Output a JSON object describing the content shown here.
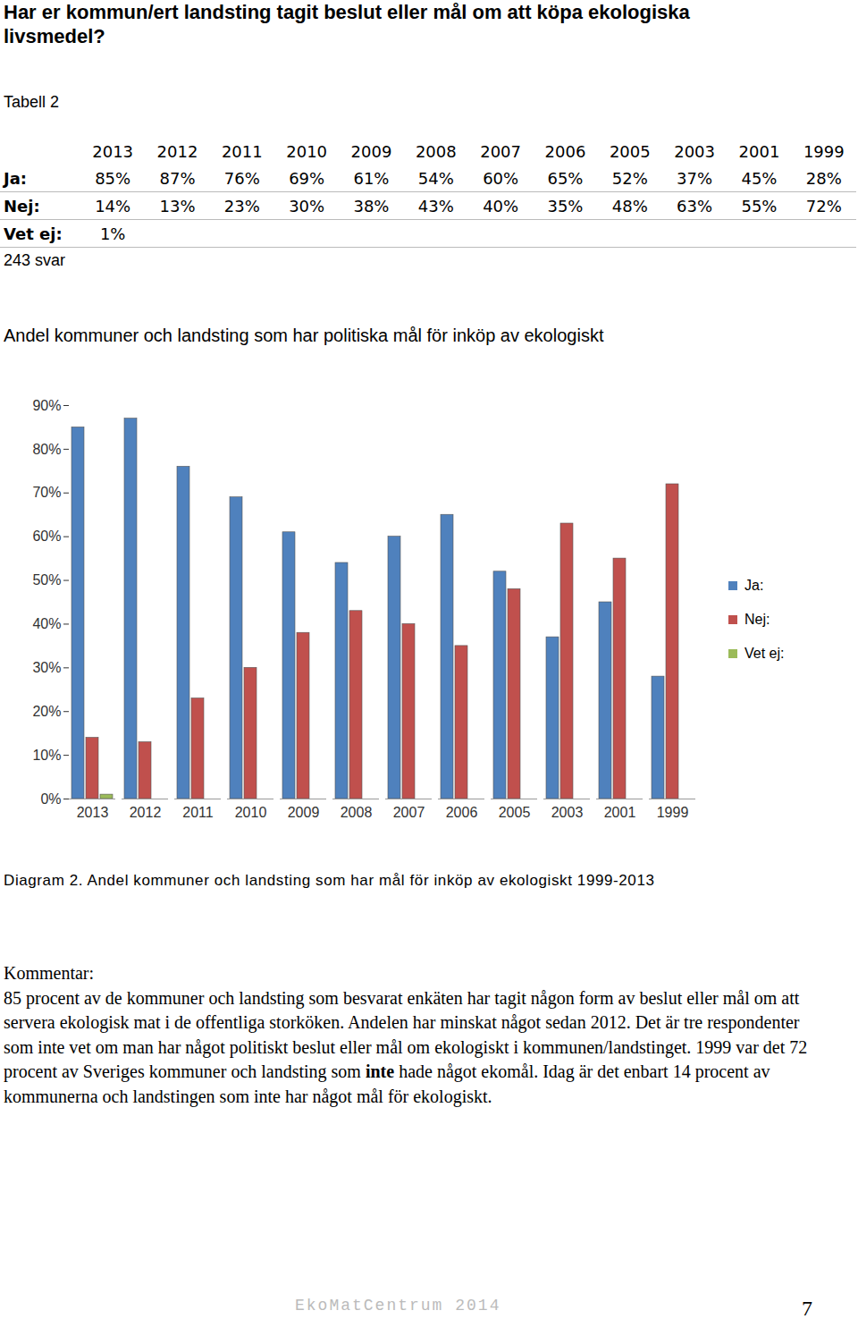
{
  "heading": "Har er kommun/ert landsting tagit beslut eller mål om att köpa ekologiska livsmedel?",
  "table": {
    "title": "Tabell 2",
    "columns": [
      "2013",
      "2012",
      "2011",
      "2010",
      "2009",
      "2008",
      "2007",
      "2006",
      "2005",
      "2003",
      "2001",
      "1999"
    ],
    "rows": [
      {
        "label": "Ja:",
        "cells": [
          "85%",
          "87%",
          "76%",
          "69%",
          "61%",
          "54%",
          "60%",
          "65%",
          "52%",
          "37%",
          "45%",
          "28%"
        ]
      },
      {
        "label": "Nej:",
        "cells": [
          "14%",
          "13%",
          "23%",
          "30%",
          "38%",
          "43%",
          "40%",
          "35%",
          "48%",
          "63%",
          "55%",
          "72%"
        ]
      },
      {
        "label": "Vet ej:",
        "cells": [
          "1%"
        ]
      }
    ],
    "note": "243 svar"
  },
  "chart_data": {
    "type": "bar",
    "title": "Andel kommuner och landsting som har politiska mål för inköp av ekologiskt",
    "categories": [
      "2013",
      "2012",
      "2011",
      "2010",
      "2009",
      "2008",
      "2007",
      "2006",
      "2005",
      "2003",
      "2001",
      "1999"
    ],
    "series": [
      {
        "name": "Ja:",
        "color": "#4f81bd",
        "values": [
          85,
          87,
          76,
          69,
          61,
          54,
          60,
          65,
          52,
          37,
          45,
          28
        ]
      },
      {
        "name": "Nej:",
        "color": "#c0504d",
        "values": [
          14,
          13,
          23,
          30,
          38,
          43,
          40,
          35,
          48,
          63,
          55,
          72
        ]
      },
      {
        "name": "Vet ej:",
        "color": "#9bbb59",
        "values": [
          1,
          null,
          null,
          null,
          null,
          null,
          null,
          null,
          null,
          null,
          null,
          null
        ]
      }
    ],
    "ylim": [
      0,
      90
    ],
    "yticks": [
      {
        "value": 0,
        "label": "0%"
      },
      {
        "value": 10,
        "label": "10%"
      },
      {
        "value": 20,
        "label": "20%"
      },
      {
        "value": 30,
        "label": "30%"
      },
      {
        "value": 40,
        "label": "40%"
      },
      {
        "value": 50,
        "label": "50%"
      },
      {
        "value": 60,
        "label": "60%"
      },
      {
        "value": 70,
        "label": "70%"
      },
      {
        "value": 80,
        "label": "80%"
      },
      {
        "value": 90,
        "label": "90%"
      }
    ],
    "grid": false,
    "legend": "right"
  },
  "caption": "Diagram 2. Andel kommuner och landsting som har mål för inköp av ekologiskt 1999-2013",
  "commentary": {
    "title": "Kommentar:",
    "parts": [
      "85 procent av de kommuner och landsting som besvarat enkäten har tagit någon form av beslut eller mål om att servera ekologisk mat i de offentliga storköken. Andelen har minskat något sedan 2012. Det är tre respondenter som inte vet om man har något politiskt beslut eller mål om ekologiskt i kommunen/landstinget. 1999 var det 72 procent av Sveriges kommuner och landsting som ",
      {
        "bold": "inte"
      },
      " hade något ekomål. Idag är det enbart 14 procent av kommunerna och landstingen som inte har något mål för ekologiskt."
    ]
  },
  "footer": "EkoMatCentrum 2014",
  "page_number": "7"
}
